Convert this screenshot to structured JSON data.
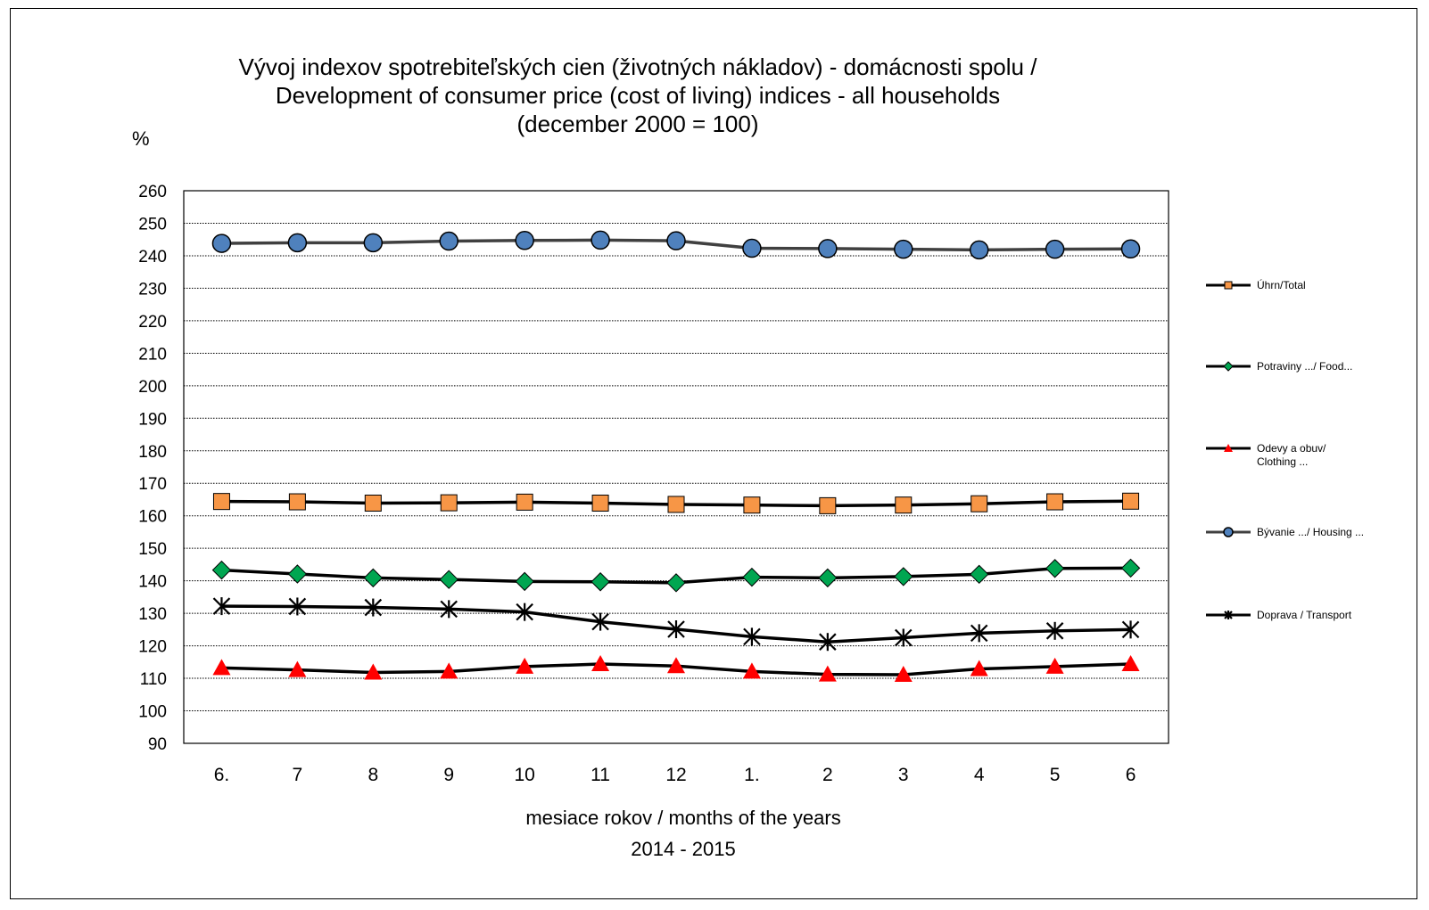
{
  "chart_data": {
    "type": "line",
    "title_lines": [
      "Vývoj indexov spotrebiteľských cien (životných nákladov) - domácnosti spolu /",
      "Development of consumer price (cost of living) indices - all households",
      "(december 2000 = 100)"
    ],
    "y_unit": "%",
    "xlabel_lines": [
      "mesiace rokov / months of the years",
      "2014 - 2015"
    ],
    "categories": [
      "6.",
      "7",
      "8",
      "9",
      "10",
      "11",
      "12",
      "1.",
      "2",
      "3",
      "4",
      "5",
      "6"
    ],
    "ylim": [
      90,
      260
    ],
    "y_ticks": [
      90,
      100,
      110,
      120,
      130,
      140,
      150,
      160,
      170,
      180,
      190,
      200,
      210,
      220,
      230,
      240,
      250,
      260
    ],
    "grid": true,
    "legend_position": "right",
    "series": [
      {
        "name": "Úhrn/Total",
        "marker": "square",
        "line_color": "#000000",
        "marker_color": "#F79646",
        "values": [
          164.4,
          164.3,
          163.9,
          164.0,
          164.2,
          163.9,
          163.5,
          163.3,
          163.1,
          163.3,
          163.7,
          164.3,
          164.5
        ]
      },
      {
        "name": "Potraviny .../ Food...",
        "marker": "diamond",
        "line_color": "#000000",
        "marker_color": "#00A651",
        "values": [
          143.3,
          142.1,
          140.9,
          140.4,
          139.8,
          139.7,
          139.4,
          141.1,
          140.9,
          141.3,
          142.0,
          143.8,
          143.9
        ]
      },
      {
        "name": "Odevy a obuv/ Clothing ...",
        "legend_lines": [
          "Odevy a obuv/",
          "Clothing ..."
        ],
        "marker": "triangle",
        "line_color": "#000000",
        "marker_color": "#FF0000",
        "values": [
          113.2,
          112.6,
          111.8,
          112.1,
          113.6,
          114.4,
          113.8,
          112.1,
          111.2,
          111.1,
          112.9,
          113.6,
          114.4
        ]
      },
      {
        "name": "Bývanie .../ Housing ...",
        "marker": "circle",
        "line_color": "#404040",
        "marker_color": "#4F81BD",
        "values": [
          243.8,
          244.0,
          244.0,
          244.5,
          244.7,
          244.8,
          244.6,
          242.3,
          242.2,
          242.0,
          241.8,
          242.0,
          242.1
        ]
      },
      {
        "name": "Doprava / Transport",
        "marker": "star",
        "line_color": "#000000",
        "marker_color": "#000000",
        "values": [
          132.2,
          132.1,
          131.8,
          131.3,
          130.4,
          127.4,
          125.1,
          122.8,
          121.2,
          122.5,
          123.9,
          124.6,
          125.0
        ]
      }
    ]
  }
}
